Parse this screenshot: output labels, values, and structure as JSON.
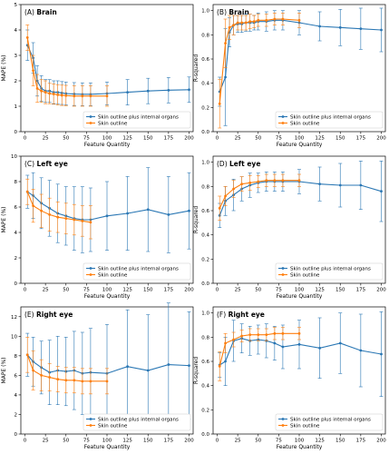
{
  "colors": {
    "skin_plus": "#2a77b4",
    "skin": "#ff7f0e"
  },
  "chart_data": [
    {
      "id": "A",
      "type": "line",
      "title_letter": "(A)",
      "title_word": "Brain",
      "xlabel": "Feature Quantity",
      "ylabel": "MAPE (%)",
      "xlim": [
        -5,
        205
      ],
      "ylim": [
        0,
        5
      ],
      "grid": false,
      "legend": "lower-right",
      "xticks": [
        0,
        25,
        50,
        75,
        100,
        125,
        150,
        175,
        200
      ],
      "yticks": [
        0,
        1,
        2,
        3,
        4,
        5
      ],
      "series": [
        {
          "name": "Skin outline plus internal organs",
          "color": "#2a77b4",
          "x": [
            3,
            10,
            15,
            20,
            25,
            30,
            35,
            40,
            45,
            50,
            60,
            70,
            80,
            100,
            125,
            150,
            175,
            200
          ],
          "y": [
            3.4,
            2.9,
            2.0,
            1.7,
            1.6,
            1.6,
            1.55,
            1.55,
            1.52,
            1.5,
            1.48,
            1.47,
            1.47,
            1.5,
            1.55,
            1.6,
            1.63,
            1.65
          ],
          "err": [
            0.6,
            0.6,
            0.6,
            0.5,
            0.45,
            0.45,
            0.45,
            0.45,
            0.45,
            0.45,
            0.45,
            0.45,
            0.45,
            0.45,
            0.5,
            0.5,
            0.5,
            0.5
          ]
        },
        {
          "name": "Skin outline",
          "color": "#ff7f0e",
          "x": [
            3,
            10,
            15,
            20,
            25,
            30,
            35,
            40,
            45,
            50,
            60,
            70,
            80,
            100
          ],
          "y": [
            3.7,
            2.4,
            1.7,
            1.6,
            1.55,
            1.5,
            1.48,
            1.45,
            1.43,
            1.42,
            1.4,
            1.4,
            1.4,
            1.4
          ],
          "err": [
            0.5,
            0.6,
            0.55,
            0.45,
            0.45,
            0.4,
            0.4,
            0.4,
            0.4,
            0.4,
            0.4,
            0.4,
            0.4,
            0.4
          ]
        }
      ]
    },
    {
      "id": "B",
      "type": "line",
      "title_letter": "(B)",
      "title_word": "Brain",
      "xlabel": "Feature Quantity",
      "ylabel": "R-squared",
      "xlim": [
        -5,
        205
      ],
      "ylim": [
        0,
        1.05
      ],
      "grid": false,
      "legend": "lower-right",
      "xticks": [
        0,
        25,
        50,
        75,
        100,
        125,
        150,
        175,
        200
      ],
      "yticks": [
        0.0,
        0.2,
        0.4,
        0.6,
        0.8,
        1.0
      ],
      "series": [
        {
          "name": "Skin outline plus internal organs",
          "color": "#2a77b4",
          "x": [
            3,
            10,
            15,
            20,
            25,
            30,
            35,
            40,
            45,
            50,
            60,
            70,
            80,
            100,
            125,
            150,
            175,
            200
          ],
          "y": [
            0.33,
            0.45,
            0.82,
            0.88,
            0.89,
            0.89,
            0.9,
            0.9,
            0.9,
            0.91,
            0.91,
            0.92,
            0.92,
            0.9,
            0.87,
            0.86,
            0.85,
            0.84
          ],
          "err": [
            0.12,
            0.4,
            0.12,
            0.08,
            0.07,
            0.07,
            0.07,
            0.07,
            0.06,
            0.07,
            0.08,
            0.08,
            0.08,
            0.1,
            0.12,
            0.15,
            0.17,
            0.18
          ]
        },
        {
          "name": "Skin outline",
          "color": "#ff7f0e",
          "x": [
            3,
            10,
            15,
            20,
            25,
            30,
            35,
            40,
            45,
            50,
            60,
            70,
            80,
            100
          ],
          "y": [
            0.23,
            0.73,
            0.86,
            0.88,
            0.9,
            0.9,
            0.9,
            0.91,
            0.91,
            0.92,
            0.92,
            0.93,
            0.93,
            0.92
          ],
          "err": [
            0.2,
            0.2,
            0.1,
            0.08,
            0.06,
            0.06,
            0.06,
            0.06,
            0.05,
            0.05,
            0.05,
            0.05,
            0.05,
            0.06
          ]
        }
      ]
    },
    {
      "id": "C",
      "type": "line",
      "title_letter": "(C)",
      "title_word": "Left eye",
      "xlabel": "Feature Quantity",
      "ylabel": "MAPE (%)",
      "xlim": [
        -5,
        205
      ],
      "ylim": [
        0,
        10
      ],
      "grid": false,
      "legend": "lower-right",
      "xticks": [
        0,
        25,
        50,
        75,
        100,
        125,
        150,
        175,
        200
      ],
      "yticks": [
        0,
        2,
        4,
        6,
        8,
        10
      ],
      "series": [
        {
          "name": "Skin outline plus internal organs",
          "color": "#2a77b4",
          "x": [
            3,
            10,
            20,
            30,
            40,
            50,
            60,
            70,
            80,
            100,
            125,
            150,
            175,
            200
          ],
          "y": [
            7.2,
            6.9,
            6.3,
            5.9,
            5.5,
            5.3,
            5.1,
            5.0,
            5.0,
            5.3,
            5.5,
            5.8,
            5.4,
            5.7
          ],
          "err": [
            1.3,
            1.8,
            2.0,
            2.2,
            2.3,
            2.3,
            2.5,
            2.6,
            2.5,
            2.7,
            2.9,
            3.3,
            3.0,
            3.0
          ]
        },
        {
          "name": "Skin outline",
          "color": "#ff7f0e",
          "x": [
            3,
            10,
            20,
            30,
            40,
            50,
            60,
            70,
            80
          ],
          "y": [
            7.2,
            6.1,
            5.7,
            5.4,
            5.2,
            5.1,
            5.0,
            4.9,
            4.8
          ],
          "err": [
            1.0,
            1.3,
            1.3,
            1.3,
            1.2,
            1.2,
            1.2,
            1.2,
            1.3
          ]
        }
      ]
    },
    {
      "id": "D",
      "type": "line",
      "title_letter": "(D)",
      "title_word": "Left eye",
      "xlabel": "Feature Quantity",
      "ylabel": "R-squared",
      "xlim": [
        -5,
        205
      ],
      "ylim": [
        0,
        1.05
      ],
      "grid": false,
      "legend": "lower-right",
      "xticks": [
        0,
        25,
        50,
        75,
        100,
        125,
        150,
        175,
        200
      ],
      "yticks": [
        0.0,
        0.2,
        0.4,
        0.6,
        0.8,
        1.0
      ],
      "series": [
        {
          "name": "Skin outline plus internal organs",
          "color": "#2a77b4",
          "x": [
            3,
            10,
            20,
            30,
            40,
            50,
            60,
            70,
            80,
            100,
            125,
            150,
            175,
            200
          ],
          "y": [
            0.56,
            0.68,
            0.73,
            0.78,
            0.81,
            0.83,
            0.84,
            0.84,
            0.84,
            0.84,
            0.82,
            0.81,
            0.81,
            0.76
          ],
          "err": [
            0.1,
            0.12,
            0.13,
            0.1,
            0.1,
            0.08,
            0.08,
            0.08,
            0.08,
            0.1,
            0.14,
            0.18,
            0.2,
            0.25
          ]
        },
        {
          "name": "Skin outline",
          "color": "#ff7f0e",
          "x": [
            3,
            10,
            20,
            30,
            40,
            50,
            60,
            70,
            80,
            100
          ],
          "y": [
            0.62,
            0.72,
            0.78,
            0.82,
            0.83,
            0.84,
            0.85,
            0.85,
            0.85,
            0.85
          ],
          "err": [
            0.1,
            0.08,
            0.07,
            0.06,
            0.06,
            0.05,
            0.05,
            0.05,
            0.05,
            0.05
          ]
        }
      ]
    },
    {
      "id": "E",
      "type": "line",
      "title_letter": "(E)",
      "title_word": "Right eye",
      "xlabel": "Feature Quantity",
      "ylabel": "MAPE (%)",
      "xlim": [
        -5,
        205
      ],
      "ylim": [
        0,
        13
      ],
      "grid": false,
      "legend": "lower-right",
      "xticks": [
        0,
        25,
        50,
        75,
        100,
        125,
        150,
        175,
        200
      ],
      "yticks": [
        0,
        2,
        4,
        6,
        8,
        10,
        12
      ],
      "series": [
        {
          "name": "Skin outline plus internal organs",
          "color": "#2a77b4",
          "x": [
            3,
            10,
            20,
            30,
            40,
            50,
            60,
            70,
            80,
            100,
            125,
            150,
            175,
            200
          ],
          "y": [
            8.1,
            7.4,
            6.8,
            6.3,
            6.5,
            6.4,
            6.5,
            6.2,
            6.3,
            6.2,
            6.9,
            6.5,
            7.1,
            7.0
          ],
          "err": [
            2.2,
            2.5,
            2.7,
            3.3,
            3.5,
            3.5,
            4.0,
            4.2,
            4.5,
            5.0,
            5.8,
            5.7,
            6.3,
            5.5
          ]
        },
        {
          "name": "Skin outline",
          "color": "#ff7f0e",
          "x": [
            3,
            10,
            20,
            30,
            40,
            50,
            60,
            70,
            80,
            100
          ],
          "y": [
            8.1,
            6.5,
            6.0,
            5.8,
            5.6,
            5.5,
            5.5,
            5.4,
            5.4,
            5.4
          ],
          "err": [
            1.8,
            2.0,
            1.6,
            1.4,
            1.3,
            1.3,
            1.3,
            1.3,
            1.3,
            1.3
          ]
        }
      ]
    },
    {
      "id": "F",
      "type": "line",
      "title_letter": "(F)",
      "title_word": "Right eye",
      "xlabel": "Feature Quantity",
      "ylabel": "R-squared",
      "xlim": [
        -5,
        205
      ],
      "ylim": [
        0,
        1.05
      ],
      "grid": false,
      "legend": "lower-right",
      "xticks": [
        0,
        25,
        50,
        75,
        100,
        125,
        150,
        175,
        200
      ],
      "yticks": [
        0.0,
        0.2,
        0.4,
        0.6,
        0.8,
        1.0
      ],
      "series": [
        {
          "name": "Skin outline plus internal organs",
          "color": "#2a77b4",
          "x": [
            3,
            10,
            20,
            30,
            40,
            50,
            60,
            70,
            80,
            100,
            125,
            150,
            175,
            200
          ],
          "y": [
            0.57,
            0.6,
            0.77,
            0.79,
            0.77,
            0.78,
            0.77,
            0.75,
            0.72,
            0.74,
            0.71,
            0.75,
            0.69,
            0.66
          ],
          "err": [
            0.1,
            0.2,
            0.17,
            0.12,
            0.12,
            0.12,
            0.14,
            0.14,
            0.18,
            0.2,
            0.25,
            0.25,
            0.3,
            0.35
          ]
        },
        {
          "name": "Skin outline",
          "color": "#ff7f0e",
          "x": [
            3,
            10,
            20,
            30,
            40,
            50,
            60,
            70,
            80,
            100
          ],
          "y": [
            0.56,
            0.75,
            0.78,
            0.81,
            0.82,
            0.82,
            0.82,
            0.83,
            0.83,
            0.83
          ],
          "err": [
            0.12,
            0.08,
            0.06,
            0.05,
            0.05,
            0.05,
            0.05,
            0.05,
            0.05,
            0.05
          ]
        }
      ]
    }
  ]
}
